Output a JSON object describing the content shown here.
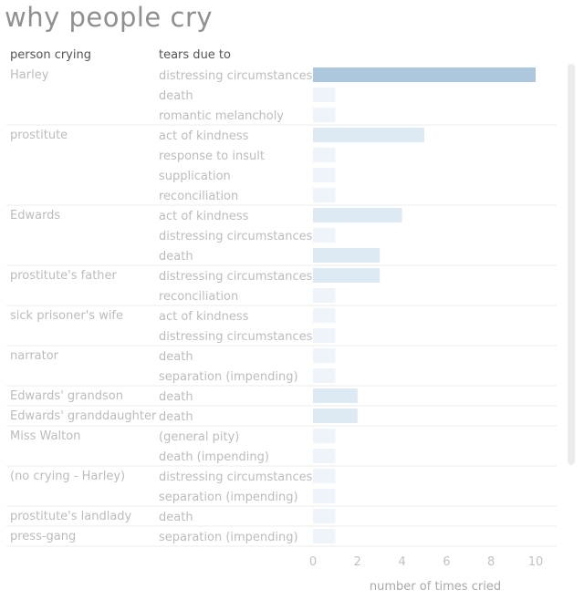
{
  "title": "why people cry",
  "headers": {
    "person": "person crying",
    "reason": "tears due to"
  },
  "colors": {
    "highlight": "#adc8dd",
    "bar": "#dde9f3",
    "bar_light": "#eef4f9",
    "divider": "#ececec",
    "text": "#bcbcbc"
  },
  "chart_data": {
    "type": "bar",
    "orientation": "horizontal",
    "title": "why people cry",
    "xlabel": "number of times cried",
    "xlim": [
      0,
      10
    ],
    "xticks": [
      0,
      2,
      4,
      6,
      8,
      10
    ],
    "groups": [
      {
        "person": "Harley",
        "rows": [
          {
            "reason": "distressing circumstances",
            "value": 10
          },
          {
            "reason": "death",
            "value": 1
          },
          {
            "reason": "romantic melancholy",
            "value": 1
          }
        ]
      },
      {
        "person": "prostitute",
        "rows": [
          {
            "reason": "act of kindness",
            "value": 5
          },
          {
            "reason": "response to insult",
            "value": 1
          },
          {
            "reason": "supplication",
            "value": 1
          },
          {
            "reason": "reconciliation",
            "value": 1
          }
        ]
      },
      {
        "person": "Edwards",
        "rows": [
          {
            "reason": "act of kindness",
            "value": 4
          },
          {
            "reason": "distressing circumstances",
            "value": 1
          },
          {
            "reason": "death",
            "value": 3
          }
        ]
      },
      {
        "person": "prostitute's father",
        "rows": [
          {
            "reason": "distressing circumstances",
            "value": 3
          },
          {
            "reason": "reconciliation",
            "value": 1
          }
        ]
      },
      {
        "person": "sick prisoner's wife",
        "rows": [
          {
            "reason": "act of kindness",
            "value": 1
          },
          {
            "reason": "distressing circumstances",
            "value": 1
          }
        ]
      },
      {
        "person": "narrator",
        "rows": [
          {
            "reason": "death",
            "value": 1
          },
          {
            "reason": "separation (impending)",
            "value": 1
          }
        ]
      },
      {
        "person": "Edwards' grandson",
        "rows": [
          {
            "reason": "death",
            "value": 2
          }
        ]
      },
      {
        "person": "Edwards' granddaughter",
        "rows": [
          {
            "reason": "death",
            "value": 2
          }
        ]
      },
      {
        "person": "Miss Walton",
        "rows": [
          {
            "reason": "(general pity)",
            "value": 1
          },
          {
            "reason": "death (impending)",
            "value": 1
          }
        ]
      },
      {
        "person": "(no crying - Harley)",
        "rows": [
          {
            "reason": "distressing circumstances",
            "value": 1
          },
          {
            "reason": "separation (impending)",
            "value": 1
          }
        ]
      },
      {
        "person": "prostitute's landlady",
        "rows": [
          {
            "reason": "death",
            "value": 1
          }
        ]
      },
      {
        "person": "press-gang",
        "rows": [
          {
            "reason": "separation (impending)",
            "value": 1
          }
        ]
      }
    ]
  }
}
